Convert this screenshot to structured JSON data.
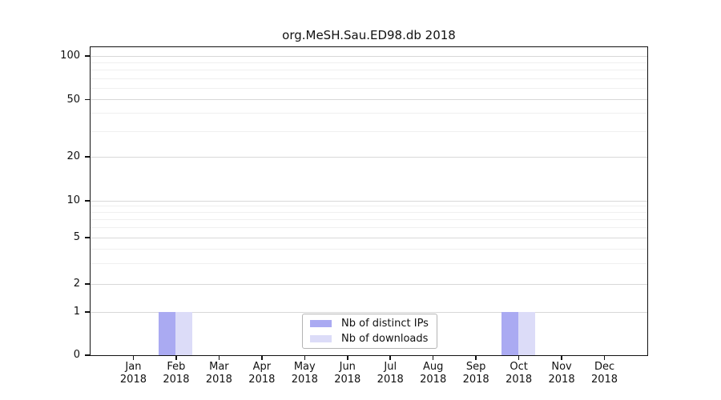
{
  "chart_data": {
    "type": "bar",
    "title": "org.MeSH.Sau.ED98.db 2018",
    "categories": [
      "Jan",
      "Feb",
      "Mar",
      "Apr",
      "May",
      "Jun",
      "Jul",
      "Aug",
      "Sep",
      "Oct",
      "Nov",
      "Dec"
    ],
    "year_label": "2018",
    "series": [
      {
        "name": "Nb of distinct IPs",
        "color": "#aaaaf2",
        "values": [
          0,
          1,
          0,
          0,
          0,
          0,
          0,
          0,
          0,
          1,
          0,
          0
        ]
      },
      {
        "name": "Nb of downloads",
        "color": "#dcdcf8",
        "values": [
          0,
          1,
          0,
          0,
          0,
          0,
          0,
          0,
          0,
          1,
          0,
          0
        ]
      }
    ],
    "xlabel": "",
    "ylabel": "",
    "yscale": "symlog",
    "yticks_major": [
      0,
      1,
      2,
      5,
      10,
      20,
      50,
      100
    ],
    "yticks_minor": [
      3,
      4,
      6,
      7,
      8,
      9,
      30,
      40,
      60,
      70,
      80,
      90
    ],
    "ylim": [
      0,
      130
    ],
    "grid": "horizontal",
    "legend_position": "lower center"
  }
}
